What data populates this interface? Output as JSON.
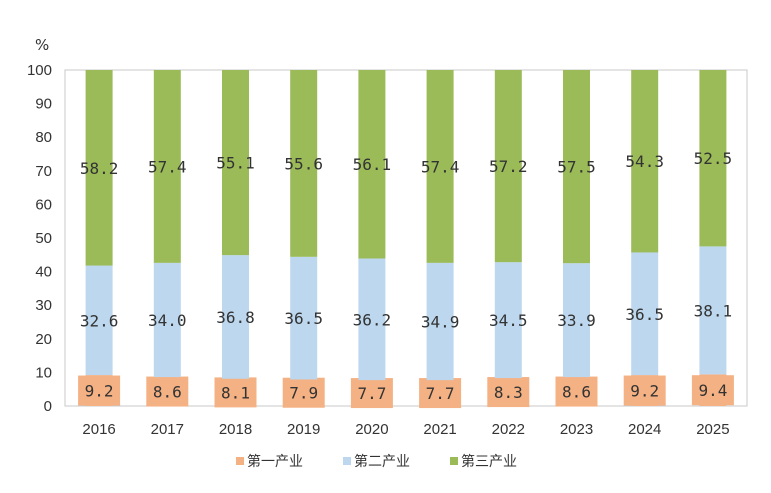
{
  "chart_data": {
    "type": "bar",
    "stacked": true,
    "y_unit": "%",
    "ylim": [
      0,
      100
    ],
    "ytick_step": 10,
    "categories": [
      "2016",
      "2017",
      "2018",
      "2019",
      "2020",
      "2021",
      "2022",
      "2023",
      "2024",
      "2025"
    ],
    "series": [
      {
        "name": "第一产业",
        "color": "#F4B183",
        "values": [
          9.2,
          8.6,
          8.1,
          7.9,
          7.7,
          7.7,
          8.3,
          8.6,
          9.2,
          9.4
        ],
        "labels": [
          "9.2",
          "8.6",
          "8.1",
          "7.9",
          "7.7",
          "7.7",
          "8.3",
          "8.6",
          "9.2",
          "9.4"
        ]
      },
      {
        "name": "第二产业",
        "color": "#BDD7EE",
        "values": [
          32.6,
          34.0,
          36.8,
          36.5,
          36.2,
          34.9,
          34.5,
          33.9,
          36.5,
          38.1
        ],
        "labels": [
          "32.6",
          "34.0",
          "36.8",
          "36.5",
          "36.2",
          "34.9",
          "34.5",
          "33.9",
          "36.5",
          "38.1"
        ]
      },
      {
        "name": "第三产业",
        "color": "#9BBB59",
        "values": [
          58.2,
          57.4,
          55.1,
          55.6,
          56.1,
          57.4,
          57.2,
          57.5,
          54.3,
          52.5
        ],
        "labels": [
          "58.2",
          "57.4",
          "55.1",
          "55.6",
          "56.1",
          "57.4",
          "57.2",
          "57.5",
          "54.3",
          "52.5"
        ]
      }
    ],
    "legend_position": "bottom",
    "grid": false
  }
}
